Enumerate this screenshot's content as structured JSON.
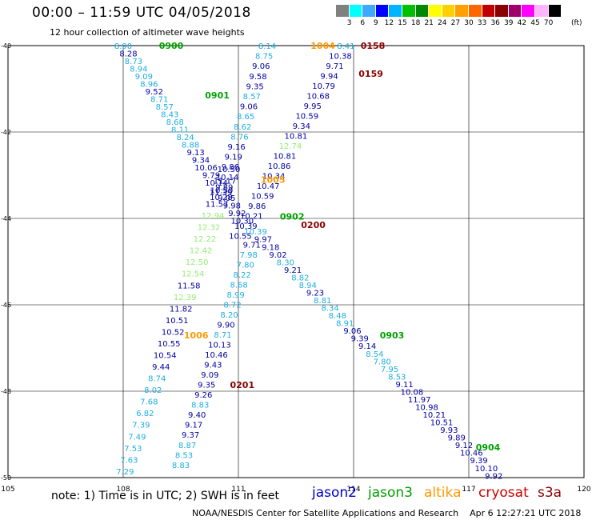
{
  "header": {
    "title": "00:00 – 11:59 UTC 04/05/2018",
    "subtitle": "12 hour collection of altimeter wave heights"
  },
  "colorscale": {
    "unit": "(ft)",
    "labels": [
      "3",
      "6",
      "9",
      "12",
      "15",
      "18",
      "21",
      "24",
      "27",
      "30",
      "33",
      "36",
      "39",
      "42",
      "45",
      "70"
    ],
    "colors": [
      "#808080",
      "#00ffff",
      "#3fa9ff",
      "#0000ff",
      "#00b4ff",
      "#00c000",
      "#008800",
      "#ffff00",
      "#ffd000",
      "#ffa000",
      "#ff6600",
      "#c00000",
      "#880000",
      "#a0006a",
      "#ff00ff",
      "#ffb4ff",
      "#000000"
    ]
  },
  "footer": {
    "note": "note: 1) Time is in UTC; 2) SWH is in feet",
    "satellites": [
      {
        "name": "jason2",
        "color": "#0000cc"
      },
      {
        "name": "jason3",
        "color": "#00a000"
      },
      {
        "name": "altika",
        "color": "#ff9900"
      },
      {
        "name": "cryosat",
        "color": "#cc0000"
      },
      {
        "name": "s3a",
        "color": "#880000"
      }
    ],
    "credit": "NOAA/NESDIS Center for Satellite Applications and Research",
    "timestamp": "Apr  6 12:27:21 UTC 2018"
  },
  "chart_data": {
    "type": "scatter",
    "title": "00:00 – 11:59 UTC 04/05/2018",
    "subtitle": "12 hour collection of altimeter wave heights",
    "xlabel": "",
    "ylabel": "",
    "xlim": [
      105,
      120
    ],
    "ylim": [
      -50,
      -40
    ],
    "x_ticks": [
      105,
      108,
      111,
      114,
      117,
      120
    ],
    "y_ticks": [
      -40,
      -42,
      -44,
      -46,
      -48,
      -50
    ],
    "x_tick_labels": [
      "105",
      "108",
      "111",
      "114",
      "117",
      "120"
    ],
    "y_tick_labels": [
      "-40",
      "-42",
      "-44",
      "-46",
      "-48",
      "-50"
    ],
    "grid": true,
    "value_colors": {
      "ice": "#1faee0",
      "blue": "#0000a0",
      "green": "#90ee70"
    },
    "tracks": [
      {
        "lon_start": 108.0,
        "lat_start": -40.0,
        "lon_end": 111.1,
        "lat_end": -44.05,
        "values": [
          "8.90",
          "8.28",
          "8.73",
          "8.94",
          "9.09",
          "8.96",
          "9.52",
          "8.71",
          "8.57",
          "8.43",
          "8.68",
          "8.11",
          "8.24",
          "8.88",
          "9.13",
          "9.34",
          "10.06",
          "9.79",
          "10.14",
          "10.50",
          "9.05",
          "9.98",
          "9.92",
          "10.30"
        ],
        "colors": [
          "ice",
          "blue",
          "ice",
          "ice",
          "ice",
          "ice",
          "blue",
          "ice",
          "ice",
          "ice",
          "ice",
          "ice",
          "ice",
          "ice",
          "blue",
          "blue",
          "blue",
          "blue",
          "blue",
          "blue",
          "blue",
          "blue",
          "blue",
          "blue"
        ]
      },
      {
        "lon_start": 108.05,
        "lat_start": -49.85,
        "lon_end": 110.75,
        "lat_end": -42.85,
        "values": [
          "7.29",
          "7.63",
          "7.53",
          "7.49",
          "7.39",
          "6.82",
          "7.68",
          "8.02",
          "8.74",
          "9.44",
          "10.54",
          "10.55",
          "10.52",
          "10.51",
          "11.82",
          "12.39",
          "11.58",
          "12.54",
          "12.50",
          "12.42",
          "12.22",
          "12.32",
          "12.94",
          "11.57",
          "11.39",
          "11.17",
          "10.50"
        ],
        "colors": [
          "ice",
          "ice",
          "ice",
          "ice",
          "ice",
          "ice",
          "ice",
          "ice",
          "ice",
          "blue",
          "blue",
          "blue",
          "blue",
          "blue",
          "blue",
          "green",
          "blue",
          "green",
          "green",
          "green",
          "green",
          "green",
          "green",
          "blue",
          "blue",
          "blue",
          "blue"
        ]
      },
      {
        "lon_start": 111.75,
        "lat_start": -40.0,
        "lon_end": 110.55,
        "lat_end": -43.5,
        "values": [
          "8.14",
          "8.75",
          "9.06",
          "9.58",
          "9.35",
          "8.57",
          "9.06",
          "8.65",
          "8.62",
          "8.76",
          "9.16",
          "9.19",
          "9.86",
          "10.14",
          "9.89",
          "10.28"
        ],
        "colors": [
          "ice",
          "ice",
          "blue",
          "blue",
          "blue",
          "ice",
          "blue",
          "ice",
          "ice",
          "ice",
          "blue",
          "blue",
          "blue",
          "blue",
          "blue",
          "blue"
        ]
      },
      {
        "lon_start": 113.8,
        "lat_start": -40.0,
        "lon_end": 111.05,
        "lat_end": -44.4,
        "values": [
          "8.41",
          "10.38",
          "9.71",
          "9.94",
          "10.79",
          "10.68",
          "9.95",
          "10.59",
          "9.34",
          "10.81",
          "12.74",
          "10.81",
          "10.86",
          "10.34",
          "10.47",
          "10.59",
          "9.86",
          "10.21",
          "10.39",
          "10.55"
        ],
        "colors": [
          "ice",
          "blue",
          "blue",
          "blue",
          "blue",
          "blue",
          "blue",
          "blue",
          "blue",
          "blue",
          "green",
          "blue",
          "blue",
          "blue",
          "blue",
          "blue",
          "blue",
          "blue",
          "blue",
          "blue"
        ]
      },
      {
        "lon_start": 111.45,
        "lat_start": -44.3,
        "lon_end": 117.65,
        "lat_end": -49.95,
        "values": [
          "10.39",
          "9.97",
          "9.18",
          "9.02",
          "8.30",
          "9.21",
          "8.82",
          "8.94",
          "9.23",
          "8.81",
          "8.34",
          "8.48",
          "8.91",
          "9.06",
          "9.39",
          "9.14",
          "8.54",
          "7.80",
          "7.95",
          "8.53",
          "9.11",
          "10.08",
          "11.97",
          "10.98",
          "10.21",
          "10.51",
          "9.93",
          "9.89",
          "9.12",
          "10.46",
          "9.39",
          "10.10",
          "9.92"
        ],
        "colors": [
          "ice",
          "blue",
          "blue",
          "blue",
          "ice",
          "blue",
          "ice",
          "ice",
          "blue",
          "ice",
          "ice",
          "ice",
          "ice",
          "blue",
          "blue",
          "blue",
          "ice",
          "ice",
          "ice",
          "ice",
          "blue",
          "blue",
          "blue",
          "blue",
          "blue",
          "blue",
          "blue",
          "blue",
          "blue",
          "blue",
          "blue",
          "blue",
          "blue"
        ]
      },
      {
        "lon_start": 111.35,
        "lat_start": -44.6,
        "lon_end": 109.5,
        "lat_end": -49.7,
        "values": [
          "9.71",
          "7.98",
          "7.80",
          "8.22",
          "8.68",
          "8.99",
          "8.72",
          "8.20",
          "9.90",
          "8.71",
          "10.13",
          "10.46",
          "9.43",
          "9.09",
          "9.35",
          "9.26",
          "8.83",
          "9.40",
          "9.17",
          "9.37",
          "8.87",
          "8.53",
          "8.83"
        ],
        "colors": [
          "blue",
          "ice",
          "ice",
          "ice",
          "ice",
          "ice",
          "ice",
          "ice",
          "blue",
          "ice",
          "blue",
          "blue",
          "blue",
          "blue",
          "blue",
          "blue",
          "ice",
          "blue",
          "blue",
          "blue",
          "ice",
          "ice",
          "ice"
        ]
      }
    ],
    "time_labels": [
      {
        "text": "0900",
        "lon": 109.25,
        "lat": -40.0,
        "sat": "jason3"
      },
      {
        "text": "0901",
        "lon": 110.45,
        "lat": -41.15,
        "sat": "jason3"
      },
      {
        "text": "1004",
        "lon": 113.2,
        "lat": -40.0,
        "sat": "altika"
      },
      {
        "text": "0158",
        "lon": 114.5,
        "lat": -40.0,
        "sat": "s3a"
      },
      {
        "text": "0159",
        "lon": 114.45,
        "lat": -40.65,
        "sat": "s3a"
      },
      {
        "text": "1005",
        "lon": 111.9,
        "lat": -43.1,
        "sat": "altika"
      },
      {
        "text": "0902",
        "lon": 112.4,
        "lat": -43.95,
        "sat": "jason3"
      },
      {
        "text": "0200",
        "lon": 112.95,
        "lat": -44.15,
        "sat": "s3a"
      },
      {
        "text": "1006",
        "lon": 109.9,
        "lat": -46.7,
        "sat": "altika"
      },
      {
        "text": "0903",
        "lon": 115.0,
        "lat": -46.7,
        "sat": "jason3"
      },
      {
        "text": "0201",
        "lon": 111.1,
        "lat": -47.85,
        "sat": "s3a"
      },
      {
        "text": "0904",
        "lon": 117.5,
        "lat": -49.3,
        "sat": "jason3"
      }
    ]
  }
}
